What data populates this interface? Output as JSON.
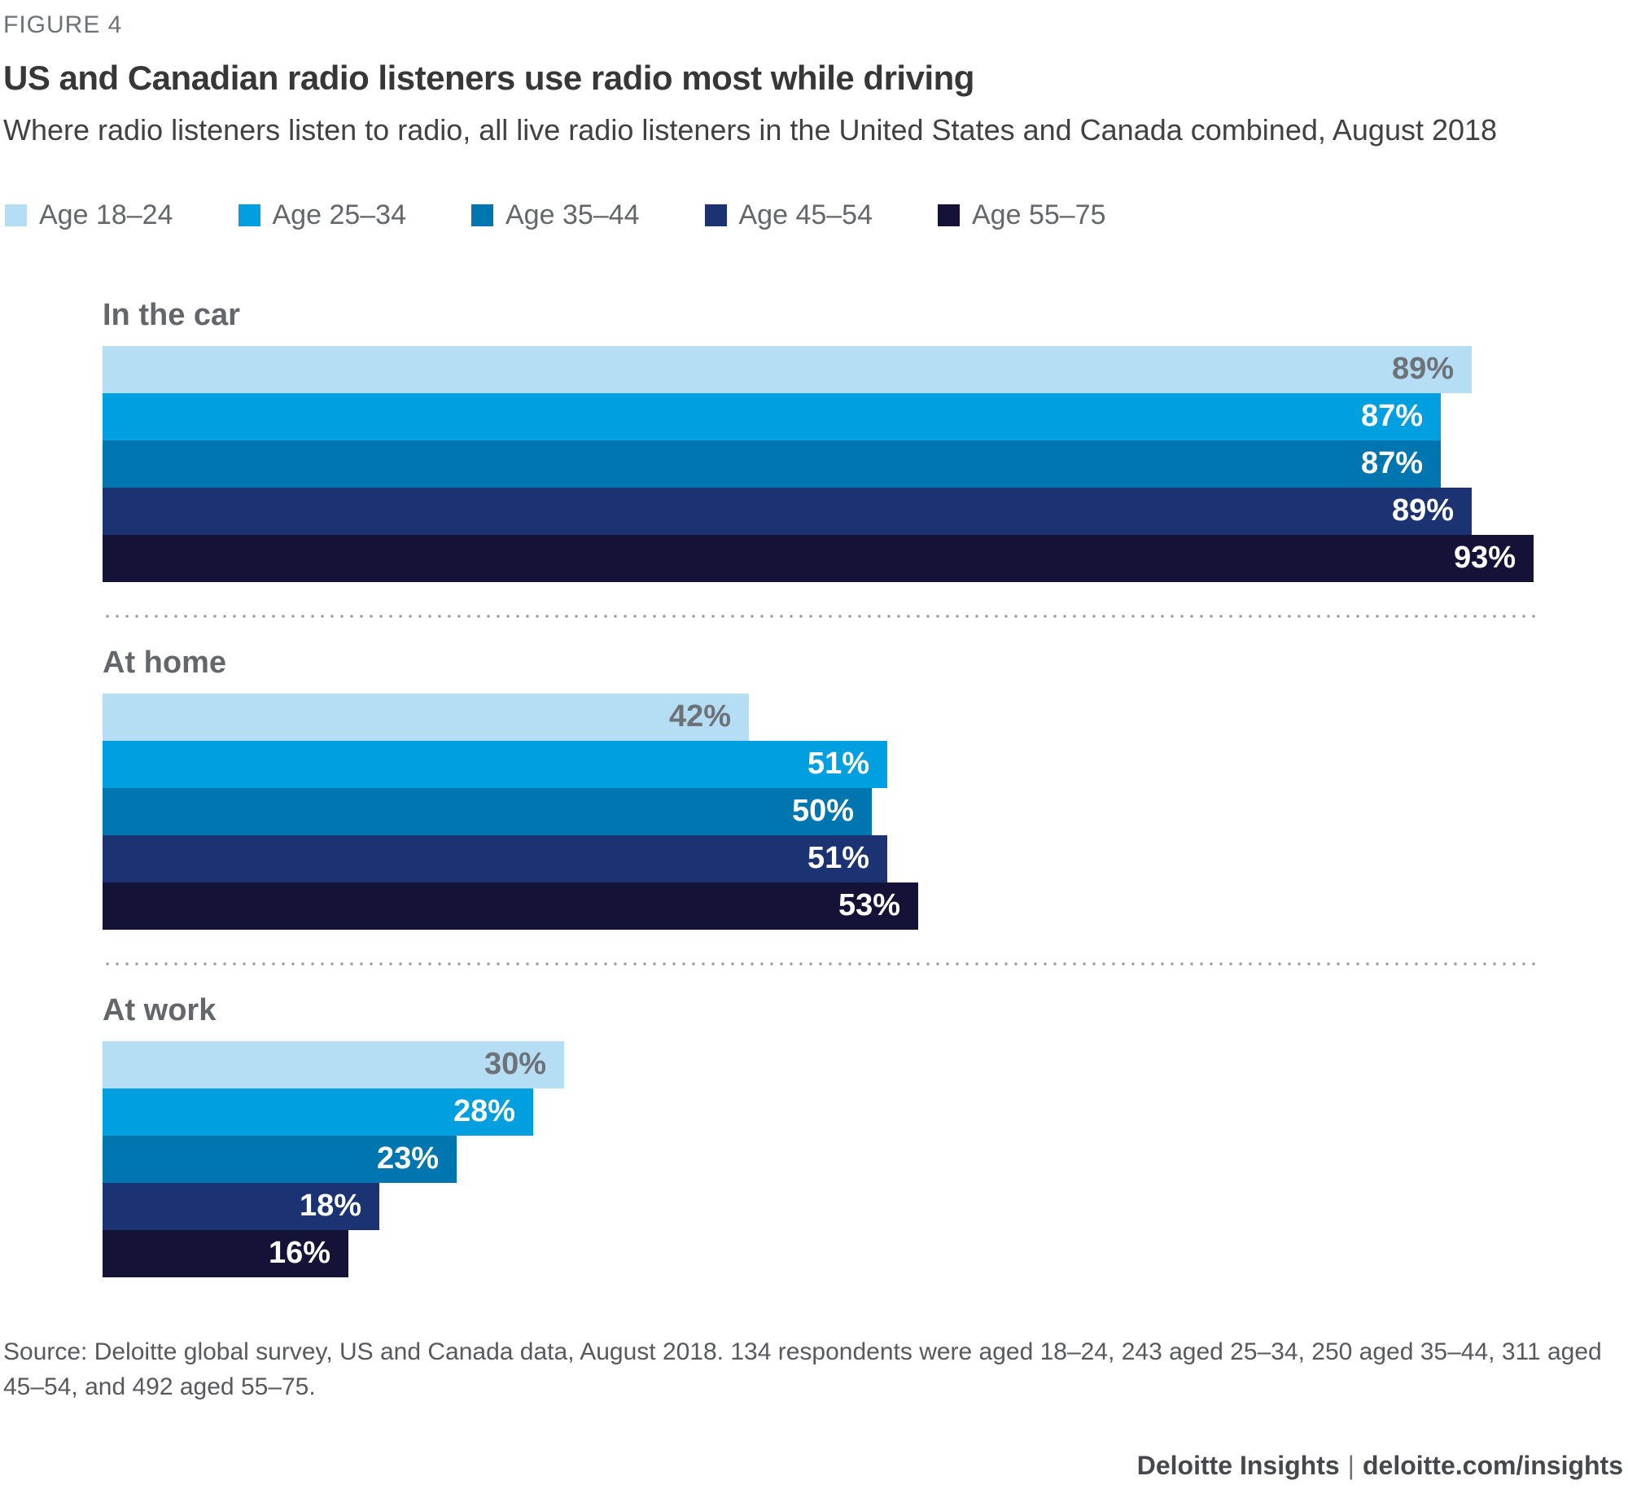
{
  "header": {
    "figure_label": "FIGURE 4",
    "title": "US and Canadian radio listeners use radio most while driving",
    "subtitle": "Where radio listeners listen to radio, all live radio listeners in the United States and Canada combined, August 2018"
  },
  "chart_data": {
    "type": "bar",
    "orientation": "horizontal",
    "unit": "%",
    "value_axis_max": 100,
    "grid": false,
    "legend_position": "top",
    "value_labels": "inside-end",
    "categories": [
      "In the car",
      "At home",
      "At work"
    ],
    "series": [
      {
        "name": "Age 18–24",
        "color": "#B5DDF4",
        "value_label_color": "#6D7278",
        "values": [
          89,
          42,
          30
        ]
      },
      {
        "name": "Age 25–34",
        "color": "#00A0E0",
        "value_label_color": "#FFFFFF",
        "values": [
          87,
          51,
          28
        ]
      },
      {
        "name": "Age 35–44",
        "color": "#0076B0",
        "value_label_color": "#FFFFFF",
        "values": [
          87,
          50,
          23
        ]
      },
      {
        "name": "Age 45–54",
        "color": "#1B3373",
        "value_label_color": "#FFFFFF",
        "values": [
          89,
          51,
          18
        ]
      },
      {
        "name": "Age 55–75",
        "color": "#141337",
        "value_label_color": "#FFFFFF",
        "values": [
          93,
          53,
          16
        ]
      }
    ]
  },
  "footer": {
    "source": "Source: Deloitte global survey, US and Canada data, August 2018. 134 respondents were aged 18–24, 243 aged 25–34, 250 aged 35–44, 311 aged 45–54, and 492 aged 55–75.",
    "brand": "Deloitte Insights",
    "separator": "|",
    "site": "deloitte.com/insights"
  }
}
